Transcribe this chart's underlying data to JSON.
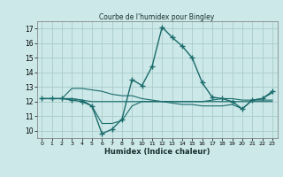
{
  "title": "Courbe de l'humidex pour Bingley",
  "xlabel": "Humidex (Indice chaleur)",
  "xlim": [
    -0.5,
    23.5
  ],
  "ylim": [
    9.5,
    17.5
  ],
  "yticks": [
    10,
    11,
    12,
    13,
    14,
    15,
    16,
    17
  ],
  "xticks": [
    0,
    1,
    2,
    3,
    4,
    5,
    6,
    7,
    8,
    9,
    10,
    11,
    12,
    13,
    14,
    15,
    16,
    17,
    18,
    19,
    20,
    21,
    22,
    23
  ],
  "bg_color": "#cce8e8",
  "grid_color": "#aacccc",
  "line_color": "#1a6b6b",
  "series": [
    [
      12.2,
      12.2,
      12.2,
      12.1,
      12.0,
      11.7,
      9.8,
      10.1,
      10.8,
      13.5,
      13.1,
      14.4,
      17.1,
      16.4,
      15.8,
      15.0,
      13.3,
      12.3,
      12.2,
      12.0,
      11.5,
      12.1,
      12.2,
      12.7
    ],
    [
      12.2,
      12.2,
      12.2,
      12.2,
      12.1,
      11.7,
      10.5,
      10.5,
      10.7,
      11.7,
      12.0,
      12.0,
      12.0,
      11.9,
      11.8,
      11.8,
      11.7,
      11.7,
      11.7,
      11.8,
      11.5,
      12.1,
      12.2,
      12.6
    ],
    [
      12.2,
      12.2,
      12.2,
      12.9,
      12.9,
      12.8,
      12.7,
      12.5,
      12.4,
      12.4,
      12.2,
      12.1,
      12.0,
      12.0,
      12.0,
      12.0,
      12.0,
      12.1,
      12.2,
      12.2,
      12.1,
      12.1,
      12.1,
      12.1
    ],
    [
      12.2,
      12.2,
      12.2,
      12.2,
      12.1,
      12.0,
      12.0,
      12.0,
      12.0,
      12.0,
      12.0,
      12.0,
      12.0,
      12.0,
      12.0,
      12.0,
      12.0,
      12.0,
      12.0,
      12.0,
      12.0,
      12.0,
      12.0,
      12.0
    ]
  ]
}
